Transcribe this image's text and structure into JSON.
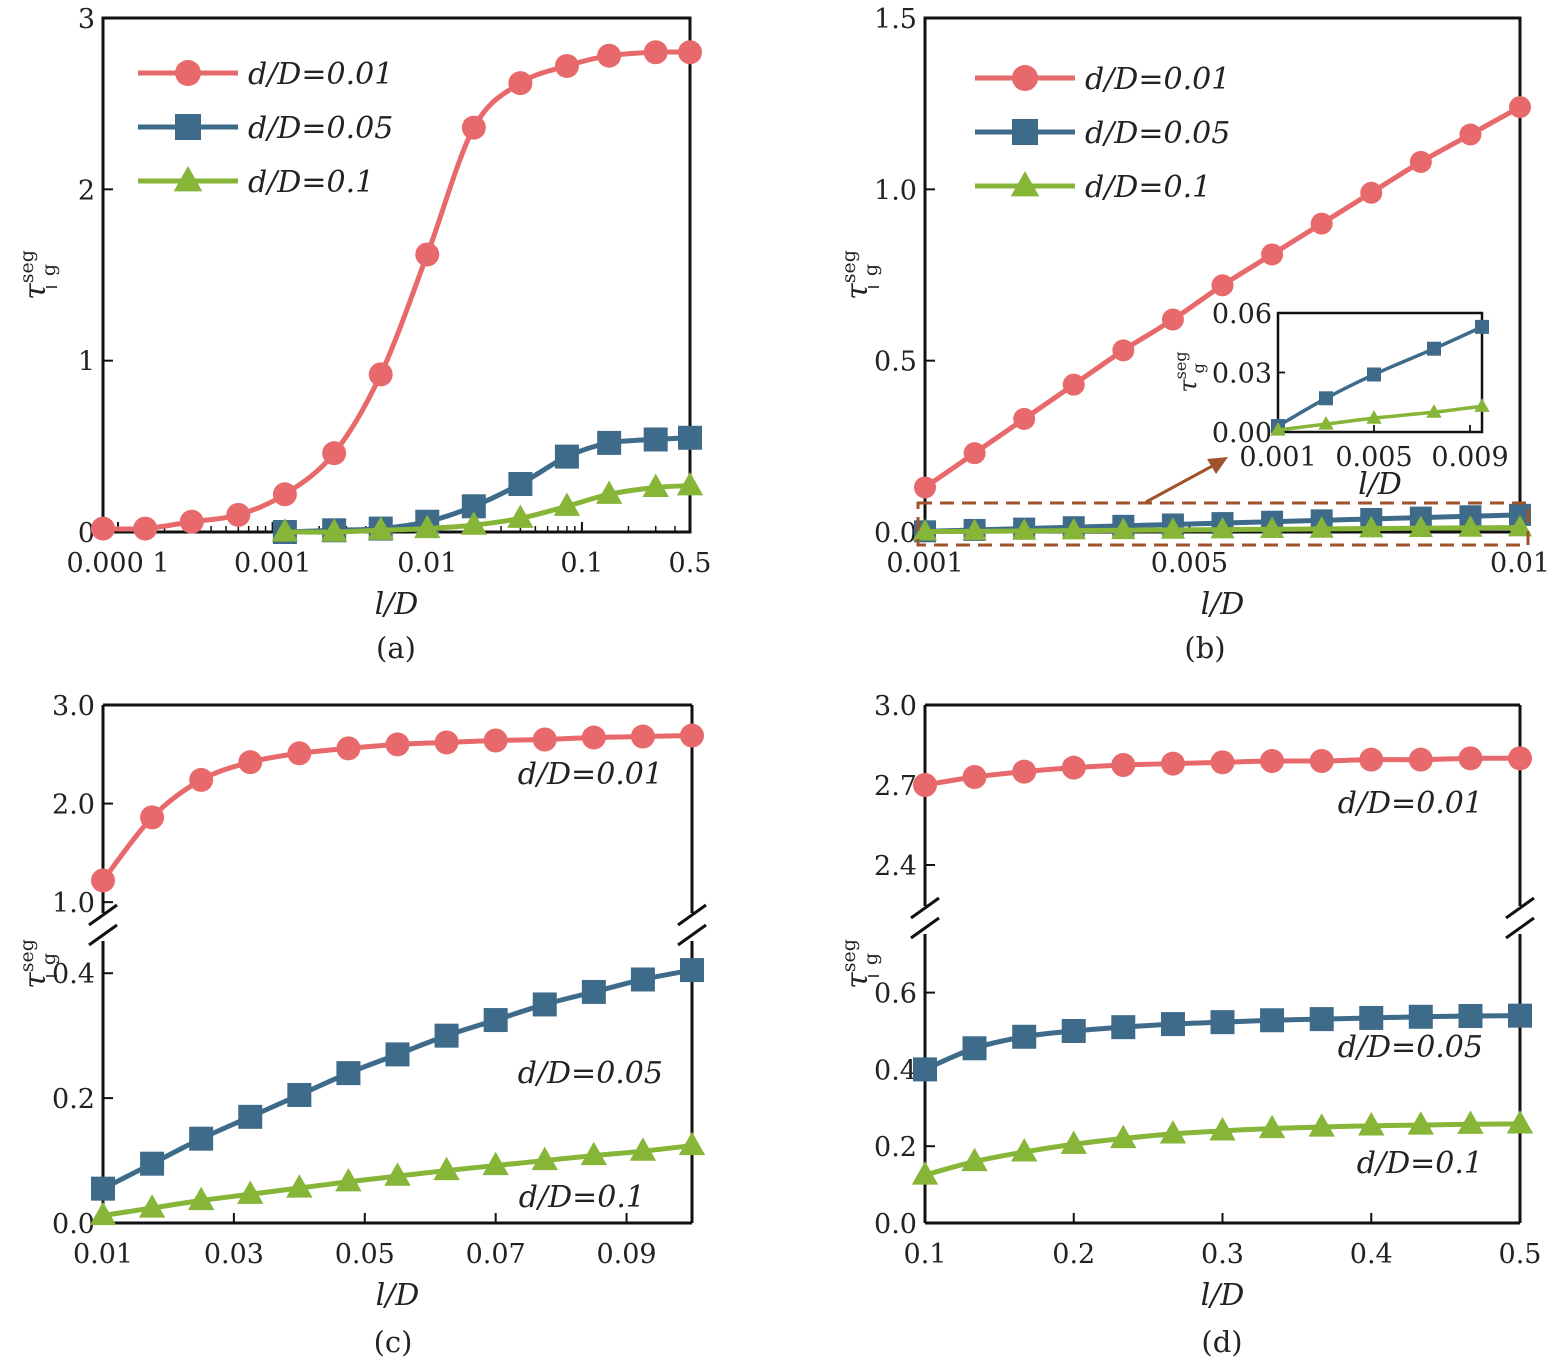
{
  "colors": {
    "red": "#e8696b",
    "blue": "#3f6b8a",
    "green": "#86b538",
    "frame": "#111111",
    "box": "#a0522d"
  },
  "chart_data": [
    {
      "panel": "a",
      "type": "line",
      "caption": "(a)",
      "xlabel": "l/D",
      "ylabel_symbol": "τ",
      "ylabel_sup": "seg",
      "ylabel_sub": "g",
      "x_scale": "log",
      "xlim": [
        8e-05,
        0.5
      ],
      "ylim": [
        0,
        3
      ],
      "xticks": [
        {
          "v": 0.0001,
          "label": "0.000 1"
        },
        {
          "v": 0.001,
          "label": "0.001"
        },
        {
          "v": 0.01,
          "label": "0.01"
        },
        {
          "v": 0.1,
          "label": "0.1"
        },
        {
          "v": 0.5,
          "label": "0.5"
        }
      ],
      "yticks": [
        {
          "v": 0,
          "label": "0"
        },
        {
          "v": 1,
          "label": "1"
        },
        {
          "v": 2,
          "label": "2"
        },
        {
          "v": 3,
          "label": "3"
        }
      ],
      "legend": "top-left",
      "series": [
        {
          "name": "d/D=0.01",
          "color": "red",
          "marker": "circle",
          "x": [
            8e-05,
            0.00015,
            0.0003,
            0.0006,
            0.0012,
            0.0025,
            0.005,
            0.01,
            0.02,
            0.04,
            0.08,
            0.15,
            0.3,
            0.5
          ],
          "y": [
            0.02,
            0.02,
            0.06,
            0.1,
            0.22,
            0.46,
            0.92,
            1.62,
            2.36,
            2.62,
            2.72,
            2.78,
            2.8,
            2.8
          ]
        },
        {
          "name": "d/D=0.05",
          "color": "blue",
          "marker": "square",
          "x": [
            0.0012,
            0.0025,
            0.005,
            0.01,
            0.02,
            0.04,
            0.08,
            0.15,
            0.3,
            0.5
          ],
          "y": [
            0.0,
            0.01,
            0.02,
            0.06,
            0.15,
            0.28,
            0.44,
            0.52,
            0.54,
            0.55
          ]
        },
        {
          "name": "d/D=0.1",
          "color": "green",
          "marker": "triangle",
          "x": [
            0.0012,
            0.0025,
            0.005,
            0.01,
            0.02,
            0.04,
            0.08,
            0.15,
            0.3,
            0.5
          ],
          "y": [
            0.0,
            0.0,
            0.01,
            0.02,
            0.04,
            0.08,
            0.15,
            0.22,
            0.26,
            0.27
          ]
        }
      ]
    },
    {
      "panel": "b",
      "type": "line",
      "caption": "(b)",
      "xlabel": "l/D",
      "ylabel_symbol": "τ",
      "ylabel_sup": "seg",
      "ylabel_sub": "g",
      "xlim": [
        0.001,
        0.01
      ],
      "ylim": [
        0,
        1.5
      ],
      "xticks": [
        {
          "v": 0.001,
          "label": "0.001"
        },
        {
          "v": 0.005,
          "label": "0.005"
        },
        {
          "v": 0.01,
          "label": "0.01"
        }
      ],
      "yticks": [
        {
          "v": 0,
          "label": "0.0"
        },
        {
          "v": 0.5,
          "label": "0.5"
        },
        {
          "v": 1.0,
          "label": "1.0"
        },
        {
          "v": 1.5,
          "label": "1.5"
        }
      ],
      "legend": "top-left",
      "series": [
        {
          "name": "d/D=0.01",
          "color": "red",
          "marker": "circle",
          "x": [
            0.001,
            0.00175,
            0.0025,
            0.00325,
            0.004,
            0.00475,
            0.0055,
            0.00625,
            0.007,
            0.00775,
            0.0085,
            0.00925,
            0.01
          ],
          "y": [
            0.13,
            0.23,
            0.33,
            0.43,
            0.53,
            0.62,
            0.72,
            0.81,
            0.9,
            0.99,
            1.08,
            1.16,
            1.24
          ]
        },
        {
          "name": "d/D=0.05",
          "color": "blue",
          "marker": "square",
          "x": [
            0.001,
            0.00175,
            0.0025,
            0.00325,
            0.004,
            0.00475,
            0.0055,
            0.00625,
            0.007,
            0.00775,
            0.0085,
            0.00925,
            0.01
          ],
          "y": [
            0.002,
            0.006,
            0.01,
            0.014,
            0.018,
            0.022,
            0.026,
            0.03,
            0.034,
            0.038,
            0.042,
            0.046,
            0.05
          ]
        },
        {
          "name": "d/D=0.1",
          "color": "green",
          "marker": "triangle",
          "x": [
            0.001,
            0.00175,
            0.0025,
            0.00325,
            0.004,
            0.00475,
            0.0055,
            0.00625,
            0.007,
            0.00775,
            0.0085,
            0.00925,
            0.01
          ],
          "y": [
            0.001,
            0.002,
            0.003,
            0.004,
            0.005,
            0.006,
            0.007,
            0.008,
            0.009,
            0.01,
            0.011,
            0.012,
            0.013
          ]
        }
      ],
      "inset": {
        "xlabel": "l/D",
        "xlim": [
          0.001,
          0.0095
        ],
        "ylim": [
          0,
          0.06
        ],
        "xticks": [
          {
            "v": 0.001,
            "label": "0.001"
          },
          {
            "v": 0.005,
            "label": "0.005"
          },
          {
            "v": 0.009,
            "label": "0.009"
          }
        ],
        "yticks": [
          {
            "v": 0.0,
            "label": "0.00"
          },
          {
            "v": 0.03,
            "label": "0.03"
          },
          {
            "v": 0.06,
            "label": "0.06"
          }
        ],
        "series": [
          {
            "color": "blue",
            "marker": "square",
            "x": [
              0.001,
              0.003,
              0.005,
              0.0075,
              0.0095
            ],
            "y": [
              0.003,
              0.017,
              0.029,
              0.042,
              0.053
            ]
          },
          {
            "color": "green",
            "marker": "triangle",
            "x": [
              0.001,
              0.003,
              0.005,
              0.0075,
              0.0095
            ],
            "y": [
              0.001,
              0.004,
              0.007,
              0.01,
              0.013
            ]
          }
        ]
      }
    },
    {
      "panel": "c",
      "type": "line",
      "caption": "(c)",
      "xlabel": "l/D",
      "ylabel_symbol": "τ",
      "ylabel_sup": "seg",
      "ylabel_sub": "g",
      "xlim": [
        0.01,
        0.1
      ],
      "broken_y": true,
      "ylim_lower": [
        0,
        0.45
      ],
      "ylim_upper": [
        0.9,
        3.0
      ],
      "xticks": [
        {
          "v": 0.01,
          "label": "0.01"
        },
        {
          "v": 0.03,
          "label": "0.03"
        },
        {
          "v": 0.05,
          "label": "0.05"
        },
        {
          "v": 0.07,
          "label": "0.07"
        },
        {
          "v": 0.09,
          "label": "0.09"
        }
      ],
      "yticks_lower": [
        {
          "v": 0.0,
          "label": "0.0"
        },
        {
          "v": 0.2,
          "label": "0.2"
        },
        {
          "v": 0.4,
          "label": "0.4"
        }
      ],
      "yticks_upper": [
        {
          "v": 1.0,
          "label": "1.0"
        },
        {
          "v": 2.0,
          "label": "2.0"
        },
        {
          "v": 3.0,
          "label": "3.0"
        }
      ],
      "series": [
        {
          "name": "d/D=0.01",
          "color": "red",
          "marker": "circle",
          "x": [
            0.01,
            0.0175,
            0.025,
            0.0325,
            0.04,
            0.0475,
            0.055,
            0.0625,
            0.07,
            0.0775,
            0.085,
            0.0925,
            0.1
          ],
          "y": [
            1.22,
            1.86,
            2.24,
            2.42,
            2.51,
            2.56,
            2.6,
            2.62,
            2.64,
            2.65,
            2.67,
            2.68,
            2.69
          ]
        },
        {
          "name": "d/D=0.05",
          "color": "blue",
          "marker": "square",
          "x": [
            0.01,
            0.0175,
            0.025,
            0.0325,
            0.04,
            0.0475,
            0.055,
            0.0625,
            0.07,
            0.0775,
            0.085,
            0.0925,
            0.1
          ],
          "y": [
            0.055,
            0.095,
            0.135,
            0.17,
            0.205,
            0.24,
            0.27,
            0.3,
            0.325,
            0.35,
            0.37,
            0.39,
            0.405
          ]
        },
        {
          "name": "d/D=0.1",
          "color": "green",
          "marker": "triangle",
          "x": [
            0.01,
            0.0175,
            0.025,
            0.0325,
            0.04,
            0.0475,
            0.055,
            0.0625,
            0.07,
            0.0775,
            0.085,
            0.0925,
            0.1
          ],
          "y": [
            0.012,
            0.024,
            0.036,
            0.046,
            0.056,
            0.066,
            0.075,
            0.084,
            0.092,
            0.1,
            0.108,
            0.115,
            0.124
          ]
        }
      ]
    },
    {
      "panel": "d",
      "type": "line",
      "caption": "(d)",
      "xlabel": "l/D",
      "ylabel_symbol": "τ",
      "ylabel_sup": "seg",
      "ylabel_sub": "g",
      "xlim": [
        0.1,
        0.5
      ],
      "broken_y": true,
      "ylim_lower": [
        0,
        0.75
      ],
      "ylim_upper": [
        2.25,
        3.0
      ],
      "xticks": [
        {
          "v": 0.1,
          "label": "0.1"
        },
        {
          "v": 0.2,
          "label": "0.2"
        },
        {
          "v": 0.3,
          "label": "0.3"
        },
        {
          "v": 0.4,
          "label": "0.4"
        },
        {
          "v": 0.5,
          "label": "0.5"
        }
      ],
      "yticks_lower": [
        {
          "v": 0.0,
          "label": "0.0"
        },
        {
          "v": 0.2,
          "label": "0.2"
        },
        {
          "v": 0.4,
          "label": "0.4"
        },
        {
          "v": 0.6,
          "label": "0.6"
        }
      ],
      "yticks_upper": [
        {
          "v": 2.4,
          "label": "2.4"
        },
        {
          "v": 2.7,
          "label": "2.7"
        },
        {
          "v": 3.0,
          "label": "3.0"
        }
      ],
      "series": [
        {
          "name": "d/D=0.01",
          "color": "red",
          "marker": "circle",
          "x": [
            0.1,
            0.1333,
            0.1667,
            0.2,
            0.2333,
            0.2667,
            0.3,
            0.3333,
            0.3667,
            0.4,
            0.4333,
            0.4667,
            0.5
          ],
          "y": [
            2.7,
            2.73,
            2.75,
            2.765,
            2.775,
            2.78,
            2.785,
            2.79,
            2.79,
            2.795,
            2.795,
            2.8,
            2.8
          ]
        },
        {
          "name": "d/D=0.05",
          "color": "blue",
          "marker": "square",
          "x": [
            0.1,
            0.1333,
            0.1667,
            0.2,
            0.2333,
            0.2667,
            0.3,
            0.3333,
            0.3667,
            0.4,
            0.4333,
            0.4667,
            0.5
          ],
          "y": [
            0.4,
            0.455,
            0.485,
            0.5,
            0.51,
            0.518,
            0.523,
            0.528,
            0.531,
            0.534,
            0.537,
            0.539,
            0.54
          ]
        },
        {
          "name": "d/D=0.1",
          "color": "green",
          "marker": "triangle",
          "x": [
            0.1,
            0.1333,
            0.1667,
            0.2,
            0.2333,
            0.2667,
            0.3,
            0.3333,
            0.3667,
            0.4,
            0.4333,
            0.4667,
            0.5
          ],
          "y": [
            0.125,
            0.16,
            0.185,
            0.205,
            0.22,
            0.232,
            0.24,
            0.246,
            0.25,
            0.253,
            0.255,
            0.257,
            0.258
          ]
        }
      ]
    }
  ]
}
